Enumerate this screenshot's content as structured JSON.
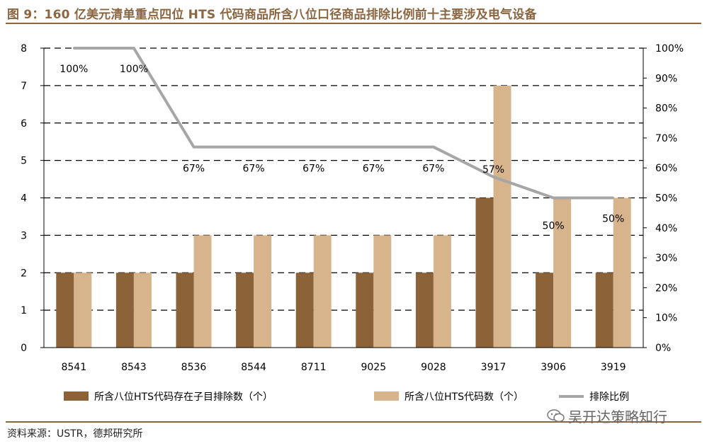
{
  "title": "图 9：160 亿美元清单重点四位 HTS 代码商品所含八位口径商品排除比例前十主要涉及电气设备",
  "source": "资料来源：USTR，德邦研究所",
  "watermark": "吴开达策略知行",
  "colors": {
    "dark_bar": "#8c6239",
    "light_bar": "#d8b48c",
    "line": "#a6a6a6",
    "accent": "#8b6641"
  },
  "chart_data": {
    "type": "bar+line",
    "categories": [
      "8541",
      "8543",
      "8536",
      "8544",
      "8711",
      "9025",
      "9028",
      "3917",
      "3906",
      "3919"
    ],
    "series": [
      {
        "name": "所含八位HTS代码存在子目排除数（个）",
        "kind": "bar",
        "axis": "left",
        "values": [
          2,
          2,
          2,
          2,
          2,
          2,
          2,
          4,
          2,
          2
        ]
      },
      {
        "name": "所含八位HTS代码数（个）",
        "kind": "bar",
        "axis": "left",
        "values": [
          2,
          2,
          3,
          3,
          3,
          3,
          3,
          7,
          4,
          4
        ]
      },
      {
        "name": "排除比例",
        "kind": "line",
        "axis": "right",
        "values": [
          100,
          100,
          67,
          67,
          67,
          67,
          67,
          57,
          50,
          50
        ],
        "labels": [
          "100%",
          "100%",
          "67%",
          "67%",
          "67%",
          "67%",
          "67%",
          "57%",
          "50%",
          "50%"
        ]
      }
    ],
    "y_left": {
      "min": 0,
      "max": 8,
      "ticks": [
        "0",
        "1",
        "2",
        "3",
        "4",
        "5",
        "6",
        "7",
        "8"
      ]
    },
    "y_right": {
      "min": 0,
      "max": 100,
      "ticks": [
        "0%",
        "10%",
        "20%",
        "30%",
        "40%",
        "50%",
        "60%",
        "70%",
        "80%",
        "90%",
        "100%"
      ]
    },
    "grid": "dashed horizontal",
    "legend": "bottom"
  }
}
